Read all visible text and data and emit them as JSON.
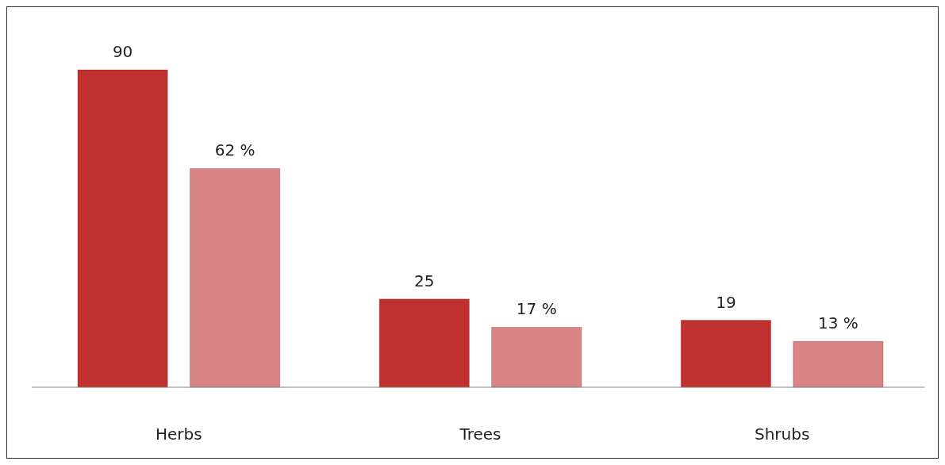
{
  "chart_data": {
    "type": "bar",
    "categories": [
      "Herbs",
      "Trees",
      "Shrubs"
    ],
    "series": [
      {
        "color": "#c0302f",
        "values": [
          90,
          25,
          19
        ],
        "value_labels": [
          "90",
          "25",
          "19"
        ]
      },
      {
        "color": "#d98585",
        "values": [
          62,
          17,
          13
        ],
        "value_labels": [
          "62 %",
          "17 %",
          "13 %"
        ]
      }
    ],
    "tick_labels": "x"
  }
}
